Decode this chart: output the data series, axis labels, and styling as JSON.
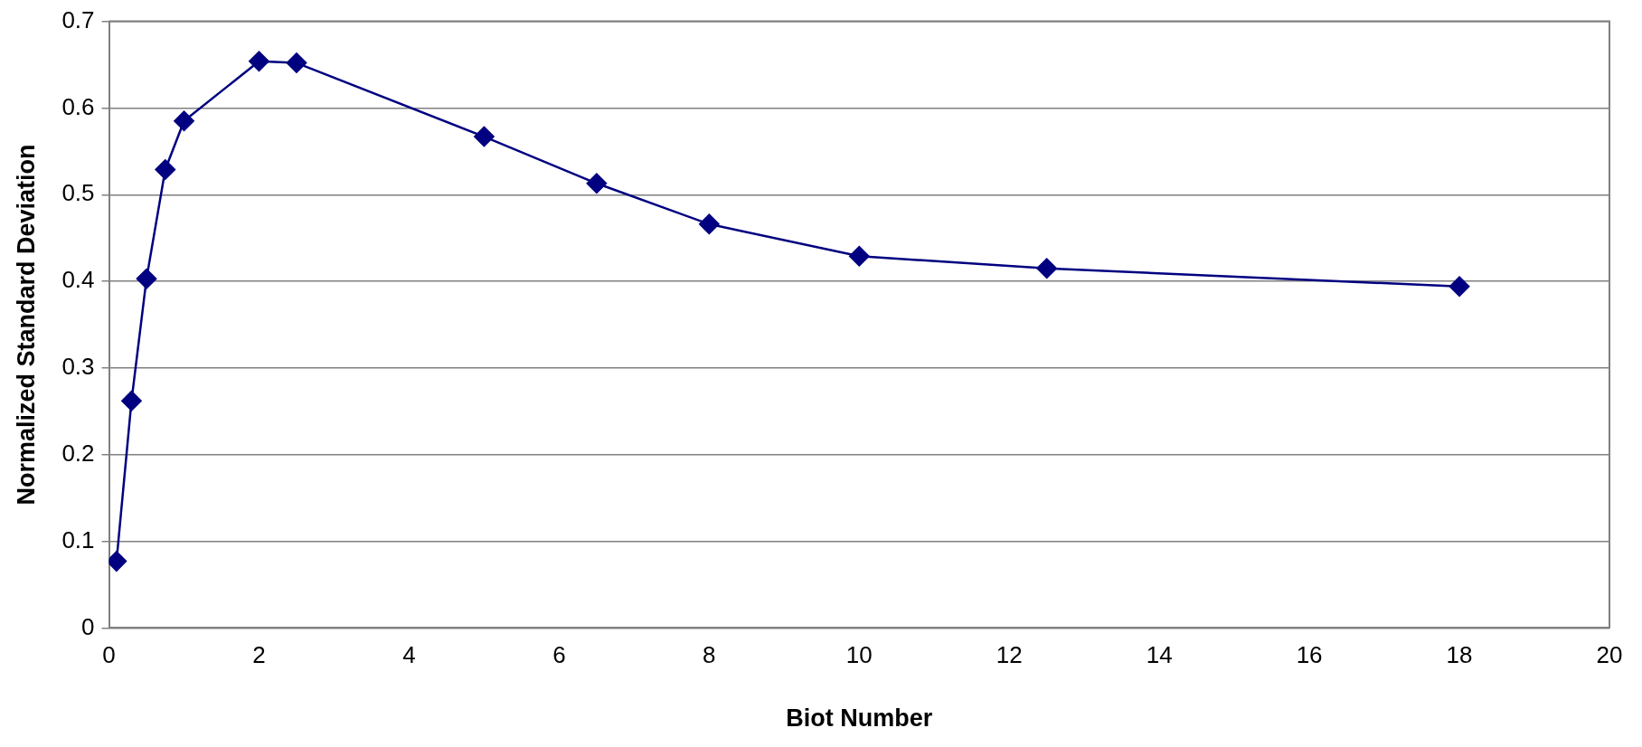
{
  "chart_data": {
    "type": "line",
    "xlabel": "Biot Number",
    "ylabel": "Normalized Standard Deviation",
    "x": [
      0.1,
      0.3,
      0.5,
      0.75,
      1,
      2,
      2.5,
      5,
      6.5,
      8,
      10,
      12.5,
      18
    ],
    "series": [
      {
        "color": "#000080",
        "values": [
          0.077,
          0.262,
          0.403,
          0.529,
          0.585,
          0.654,
          0.652,
          0.567,
          0.513,
          0.466,
          0.429,
          0.415,
          0.394
        ]
      }
    ],
    "xlim": [
      0,
      20
    ],
    "xticks": [
      0,
      2,
      4,
      6,
      8,
      10,
      12,
      14,
      16,
      18,
      20
    ],
    "ylim": [
      0,
      0.7
    ],
    "yticks": [
      0,
      0.1,
      0.2,
      0.3,
      0.4,
      0.5,
      0.6,
      0.7
    ],
    "grid": "y",
    "legend": false,
    "marker": "diamond",
    "line_style": "solid"
  }
}
